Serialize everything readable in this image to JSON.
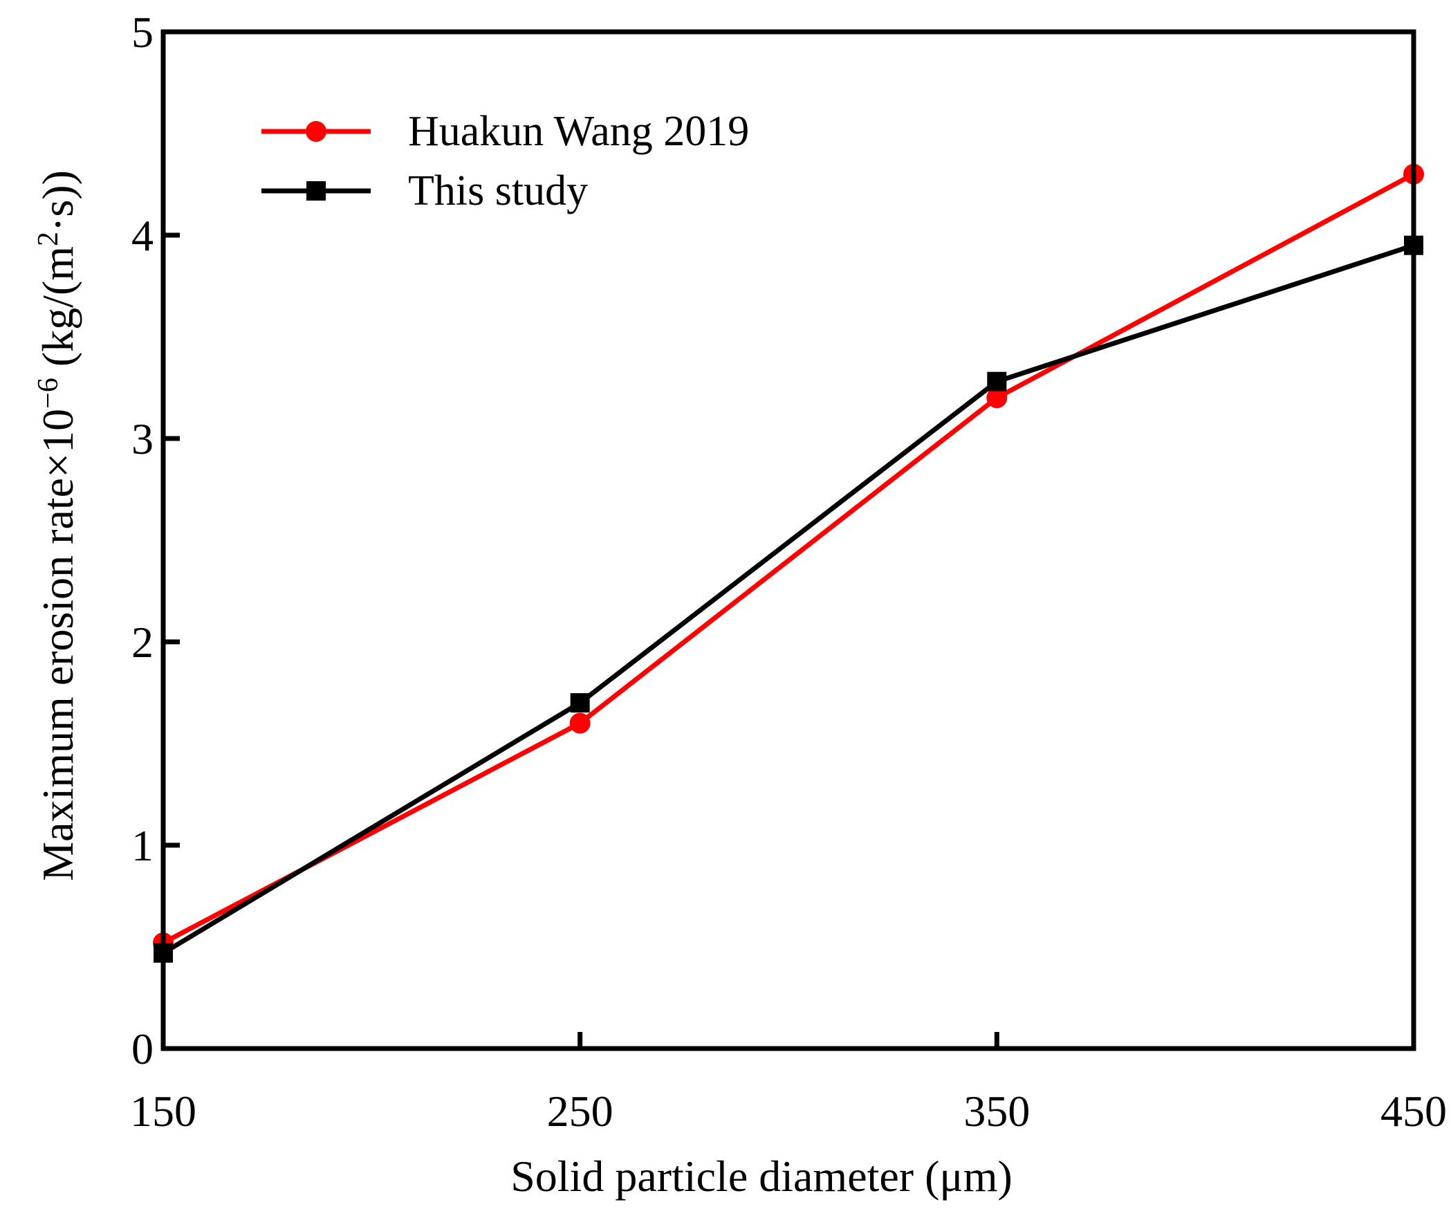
{
  "chart_data": {
    "type": "line",
    "title": "",
    "xlabel": "Solid particle diameter (μm)",
    "ylabel": {
      "prefix": "Maximum erosion rate×10",
      "exponent": "−6",
      "unit_open": " (kg/(m",
      "unit_exp": "2",
      "unit_close": "·s))"
    },
    "xlim": [
      150,
      450
    ],
    "ylim": [
      0,
      5
    ],
    "x_ticks": [
      150,
      250,
      350,
      450
    ],
    "y_ticks": [
      0,
      1,
      2,
      3,
      4,
      5
    ],
    "legend_position": "top-left",
    "grid": false,
    "series": [
      {
        "name": "Huakun Wang 2019",
        "color": "#ff0000",
        "marker": "circle",
        "x": [
          150,
          250,
          350,
          450
        ],
        "values": [
          0.52,
          1.6,
          3.2,
          4.3
        ]
      },
      {
        "name": "This study",
        "color": "#000000",
        "marker": "square",
        "x": [
          150,
          250,
          350,
          450
        ],
        "values": [
          0.47,
          1.7,
          3.28,
          3.95
        ]
      }
    ]
  }
}
